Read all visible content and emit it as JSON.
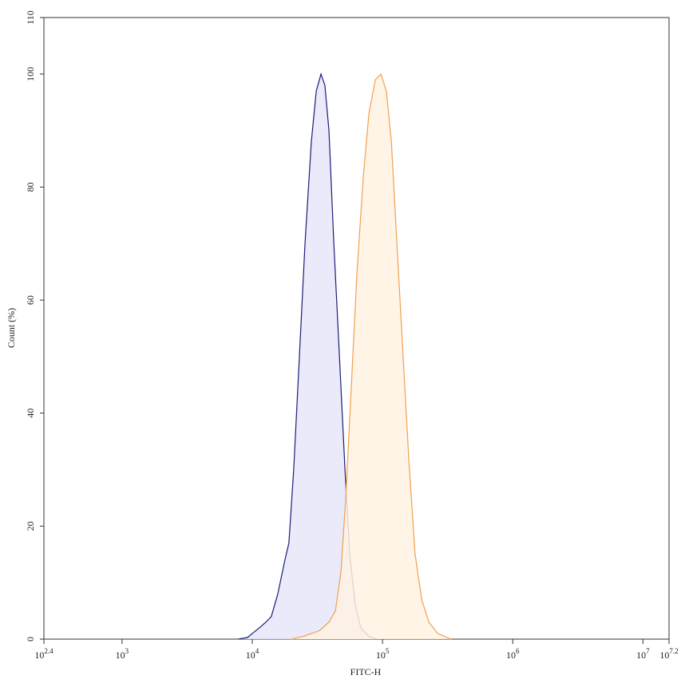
{
  "chart_data": {
    "type": "area",
    "xlabel": "FITC-H",
    "ylabel": "Count (%)",
    "xscale": "log",
    "xlim": [
      251.19,
      15848932
    ],
    "ylim": [
      0,
      110
    ],
    "xticks": [
      {
        "value": 251.19,
        "label": "10",
        "exponent": "2.4"
      },
      {
        "value": 1000,
        "label": "10",
        "exponent": "3"
      },
      {
        "value": 10000,
        "label": "10",
        "exponent": "4"
      },
      {
        "value": 100000,
        "label": "10",
        "exponent": "5"
      },
      {
        "value": 1000000,
        "label": "10",
        "exponent": "6"
      },
      {
        "value": 10000000,
        "label": "10",
        "exponent": "7"
      },
      {
        "value": 15848932,
        "label": "10",
        "exponent": "7.2"
      }
    ],
    "yticks": [
      0,
      20,
      40,
      60,
      80,
      100,
      110
    ],
    "series": [
      {
        "color": "#1c1c78",
        "fill": "#e6e6fa",
        "x": [
          7800,
          9200,
          10000,
          11350,
          12700,
          14000,
          15700,
          17800,
          19100,
          20800,
          23000,
          25400,
          28400,
          31000,
          33700,
          36100,
          38800,
          42300,
          46700,
          51500,
          56000,
          61800,
          68200,
          78500,
          90500
        ],
        "values": [
          0,
          0.3,
          1,
          2,
          3,
          4,
          8,
          14,
          17,
          30,
          50,
          70,
          88,
          97,
          100,
          98,
          90,
          70,
          50,
          30,
          15,
          6,
          2,
          0.5,
          0
        ]
      },
      {
        "color": "#f0a050",
        "fill": "#fff2e2",
        "x": [
          20000,
          24700,
          32800,
          38800,
          43500,
          48000,
          52200,
          57700,
          63700,
          71300,
          78600,
          88100,
          97300,
          107000,
          117000,
          129000,
          144000,
          159000,
          178000,
          200000,
          227000,
          265000,
          337000
        ],
        "values": [
          0,
          0.5,
          1.5,
          3,
          5,
          12,
          25,
          45,
          65,
          82,
          93,
          99,
          100,
          97,
          88,
          70,
          50,
          32,
          15,
          7,
          3,
          1,
          0
        ]
      }
    ]
  }
}
